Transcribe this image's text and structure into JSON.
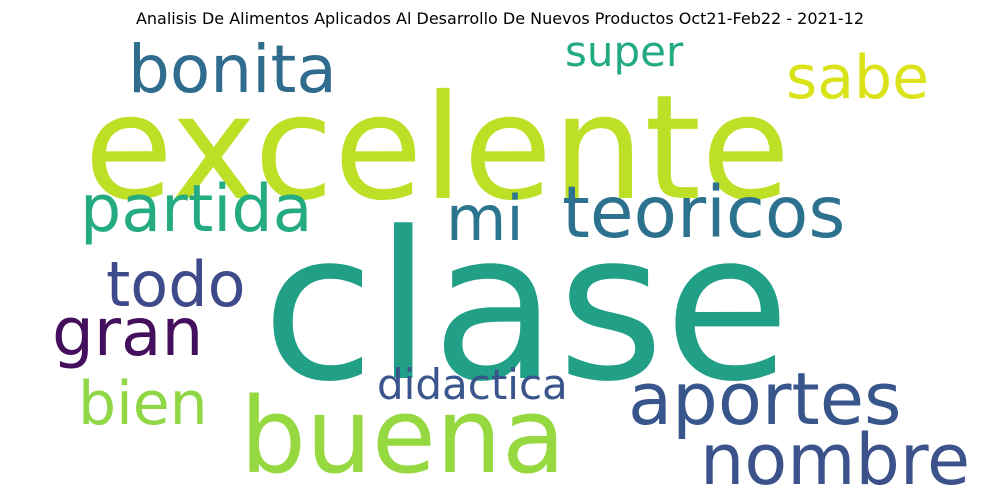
{
  "chart_data": {
    "type": "wordcloud",
    "title": "Analisis De Alimentos Aplicados Al Desarrollo De Nuevos Productos Oct21-Feb22 - 2021-12",
    "words": [
      {
        "text": "clase",
        "weight": 1.0,
        "color": "#21a087"
      },
      {
        "text": "excelente",
        "weight": 0.88,
        "color": "#bddf26"
      },
      {
        "text": "buena",
        "weight": 0.74,
        "color": "#95d840"
      },
      {
        "text": "aportes",
        "weight": 0.45,
        "color": "#39568c"
      },
      {
        "text": "teoricos",
        "weight": 0.44,
        "color": "#2c728e"
      },
      {
        "text": "nombre",
        "weight": 0.42,
        "color": "#3b528b"
      },
      {
        "text": "gran",
        "weight": 0.4,
        "color": "#440f5c"
      },
      {
        "text": "bonita",
        "weight": 0.4,
        "color": "#2f6c8e"
      },
      {
        "text": "partida",
        "weight": 0.4,
        "color": "#25ab82"
      },
      {
        "text": "todo",
        "weight": 0.38,
        "color": "#3e4a89"
      },
      {
        "text": "sabe",
        "weight": 0.38,
        "color": "#dae319"
      },
      {
        "text": "mi",
        "weight": 0.38,
        "color": "#2b758e"
      },
      {
        "text": "bien",
        "weight": 0.36,
        "color": "#8fd744"
      },
      {
        "text": "didactica",
        "weight": 0.24,
        "color": "#3a548c"
      },
      {
        "text": "super",
        "weight": 0.22,
        "color": "#23a983"
      }
    ]
  }
}
